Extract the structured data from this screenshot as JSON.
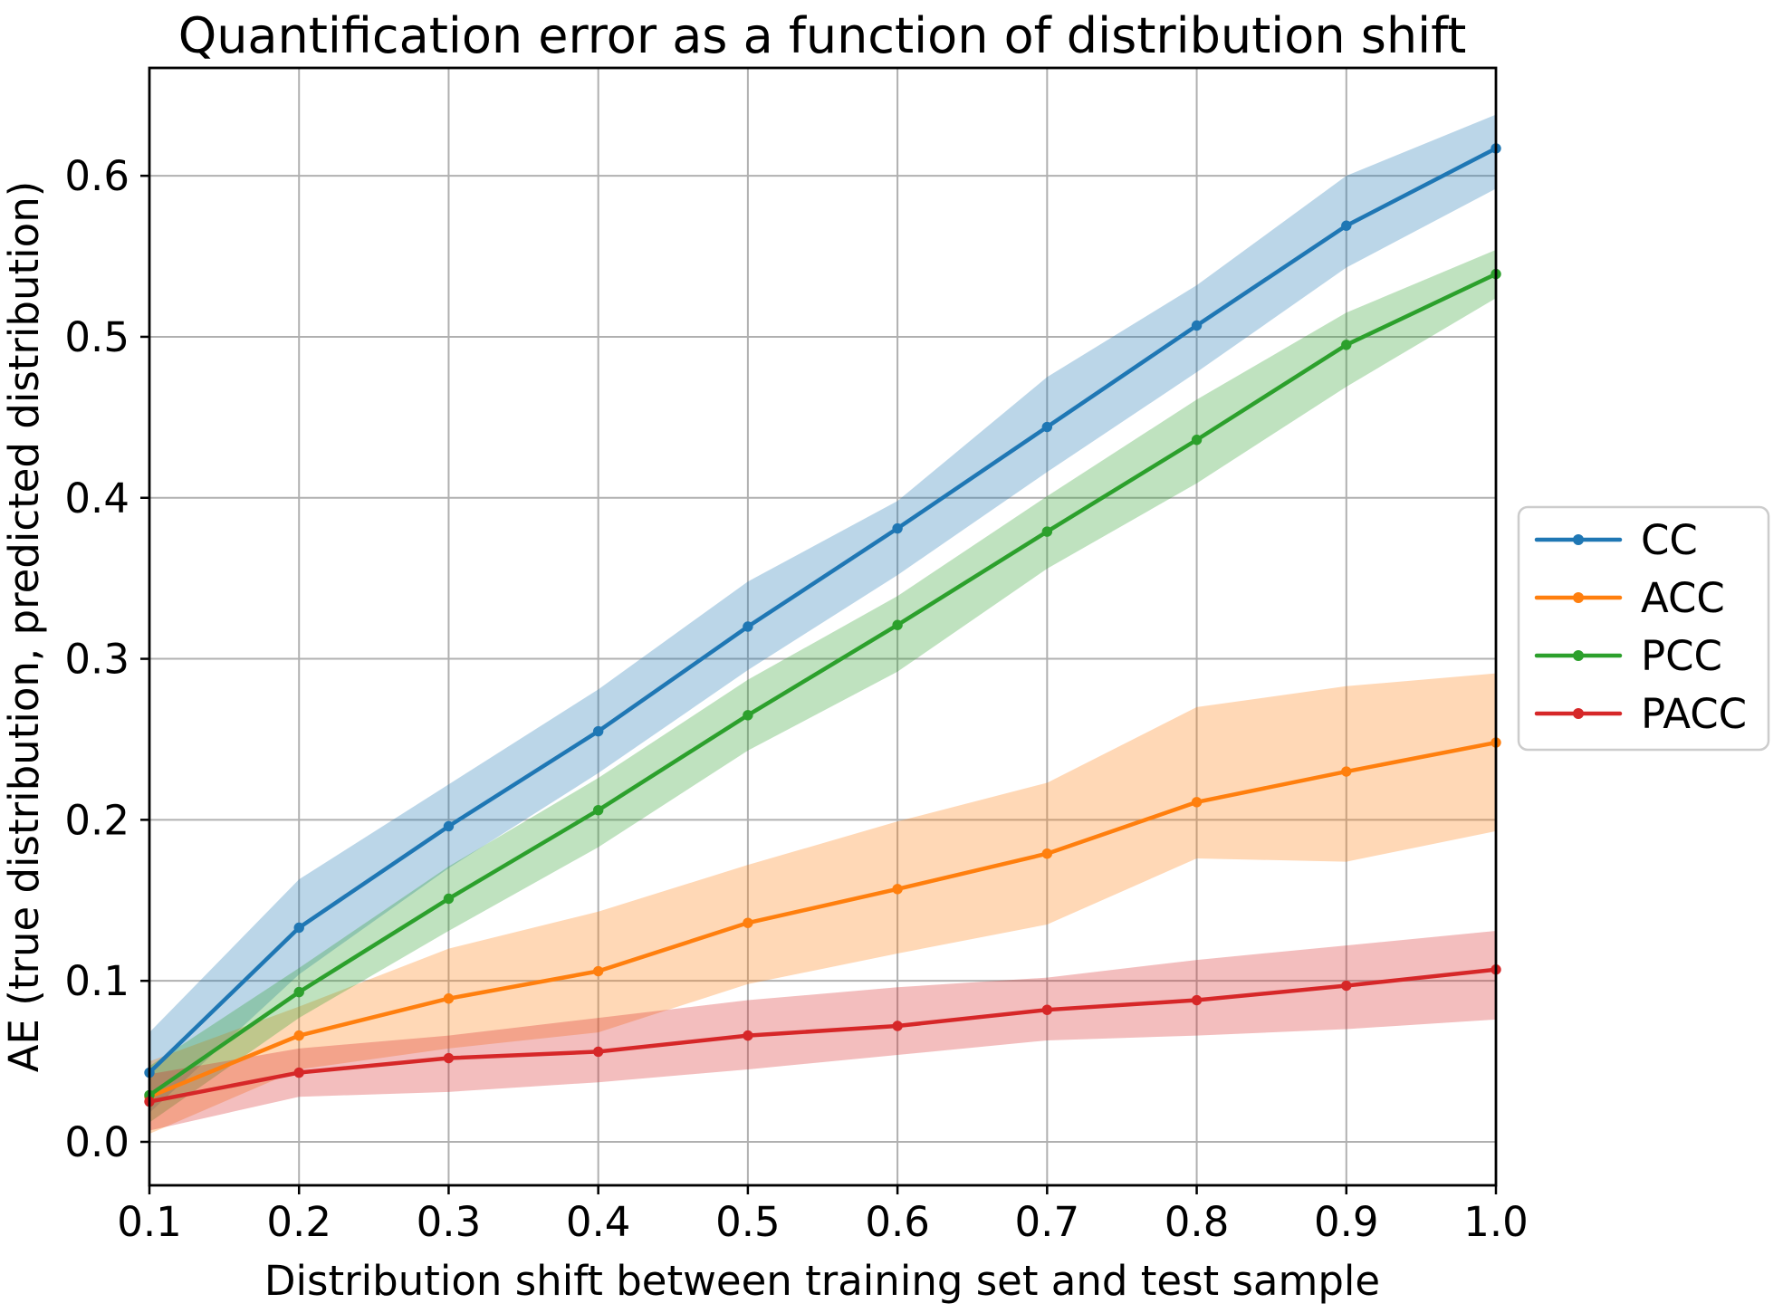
{
  "chart_data": {
    "type": "line",
    "title": "Quantification error as a function of distribution shift",
    "xlabel": "Distribution shift between training set and test sample",
    "ylabel": "AE (true distribution, predicted distribution)",
    "x": [
      0.1,
      0.2,
      0.3,
      0.4,
      0.5,
      0.6,
      0.7,
      0.8,
      0.9,
      1.0
    ],
    "x_tick_labels": [
      "0.1",
      "0.2",
      "0.3",
      "0.4",
      "0.5",
      "0.6",
      "0.7",
      "0.8",
      "0.9",
      "1.0"
    ],
    "y_ticks": [
      0.0,
      0.1,
      0.2,
      0.3,
      0.4,
      0.5,
      0.6
    ],
    "y_tick_labels": [
      "0.0",
      "0.1",
      "0.2",
      "0.3",
      "0.4",
      "0.5",
      "0.6"
    ],
    "xlim": [
      0.1,
      1.0
    ],
    "ylim": [
      -0.027,
      0.667
    ],
    "grid": true,
    "grid_color": "#b0b0b0",
    "band_alpha": 0.3,
    "legend_position": "center-right-outside",
    "series": [
      {
        "name": "CC",
        "color": "#1f77b4",
        "values": [
          0.043,
          0.133,
          0.196,
          0.255,
          0.32,
          0.381,
          0.444,
          0.507,
          0.569,
          0.617
        ],
        "band_lower": [
          0.018,
          0.104,
          0.17,
          0.229,
          0.293,
          0.352,
          0.416,
          0.478,
          0.543,
          0.592
        ],
        "band_upper": [
          0.068,
          0.163,
          0.222,
          0.281,
          0.348,
          0.398,
          0.475,
          0.532,
          0.6,
          0.638
        ]
      },
      {
        "name": "ACC",
        "color": "#ff7f0e",
        "values": [
          0.028,
          0.066,
          0.089,
          0.106,
          0.136,
          0.157,
          0.179,
          0.211,
          0.23,
          0.248
        ],
        "band_lower": [
          0.005,
          0.045,
          0.058,
          0.068,
          0.098,
          0.117,
          0.135,
          0.176,
          0.174,
          0.193
        ],
        "band_upper": [
          0.05,
          0.084,
          0.12,
          0.143,
          0.172,
          0.199,
          0.223,
          0.27,
          0.283,
          0.291
        ]
      },
      {
        "name": "PCC",
        "color": "#2ca02c",
        "values": [
          0.029,
          0.093,
          0.151,
          0.206,
          0.265,
          0.321,
          0.379,
          0.436,
          0.495,
          0.539
        ],
        "band_lower": [
          0.012,
          0.077,
          0.131,
          0.183,
          0.243,
          0.292,
          0.356,
          0.409,
          0.469,
          0.524
        ],
        "band_upper": [
          0.047,
          0.108,
          0.171,
          0.226,
          0.287,
          0.339,
          0.401,
          0.461,
          0.515,
          0.554
        ]
      },
      {
        "name": "PACC",
        "color": "#d62728",
        "values": [
          0.025,
          0.043,
          0.052,
          0.056,
          0.066,
          0.072,
          0.082,
          0.088,
          0.097,
          0.107
        ],
        "band_lower": [
          0.007,
          0.028,
          0.031,
          0.037,
          0.045,
          0.054,
          0.063,
          0.066,
          0.07,
          0.076
        ],
        "band_upper": [
          0.042,
          0.058,
          0.066,
          0.077,
          0.088,
          0.096,
          0.102,
          0.113,
          0.122,
          0.131
        ]
      }
    ]
  }
}
